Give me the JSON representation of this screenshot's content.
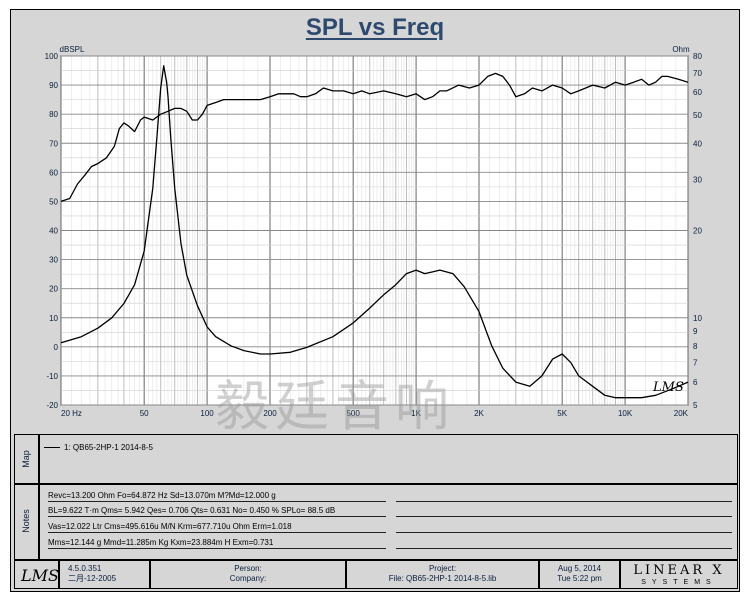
{
  "chart_data": {
    "type": "line",
    "title": "SPL vs Freq",
    "xscale": "log",
    "xlim": [
      20,
      20000
    ],
    "x_ticks": [
      20,
      50,
      100,
      200,
      500,
      1000,
      2000,
      5000,
      10000,
      20000
    ],
    "x_tick_labels": [
      "20  Hz",
      "50",
      "100",
      "200",
      "500",
      "1K",
      "2K",
      "5K",
      "10K",
      "20K"
    ],
    "left_axis": {
      "label": "dBSPL",
      "ylim": [
        -20,
        100
      ],
      "ticks": [
        100,
        90,
        80,
        70,
        60,
        50,
        40,
        30,
        20,
        10,
        0,
        -10,
        -20
      ]
    },
    "right_axis": {
      "label": "Ohm",
      "scale": "log",
      "ylim": [
        5,
        80
      ],
      "ticks": [
        80,
        70,
        60,
        50,
        40,
        30,
        20,
        10,
        9,
        8,
        7,
        6,
        5
      ]
    },
    "series": [
      {
        "name": "SPL",
        "axis": "left",
        "color": "#000000",
        "x": [
          20,
          22,
          24,
          26,
          28,
          30,
          33,
          36,
          38,
          40,
          42,
          45,
          48,
          50,
          55,
          60,
          65,
          70,
          75,
          80,
          85,
          90,
          95,
          100,
          110,
          120,
          140,
          160,
          180,
          200,
          220,
          240,
          260,
          280,
          300,
          330,
          360,
          400,
          450,
          500,
          550,
          600,
          700,
          800,
          900,
          1000,
          1100,
          1200,
          1300,
          1400,
          1600,
          1800,
          2000,
          2200,
          2400,
          2600,
          2800,
          3000,
          3300,
          3600,
          4000,
          4500,
          5000,
          5500,
          6000,
          7000,
          8000,
          9000,
          10000,
          11000,
          12000,
          13000,
          14000,
          15000,
          16000,
          18000,
          20000
        ],
        "y": [
          50,
          51,
          56,
          59,
          62,
          63,
          65,
          69,
          75,
          77,
          76,
          74,
          78,
          79,
          78,
          80,
          81,
          82,
          82,
          81,
          78,
          78,
          80,
          83,
          84,
          85,
          85,
          85,
          85,
          86,
          87,
          87,
          87,
          86,
          86,
          87,
          89,
          88,
          88,
          87,
          88,
          87,
          88,
          87,
          86,
          87,
          85,
          86,
          88,
          88,
          90,
          89,
          90,
          93,
          94,
          93,
          90,
          86,
          87,
          89,
          88,
          90,
          89,
          87,
          88,
          90,
          89,
          91,
          90,
          91,
          92,
          90,
          91,
          93,
          93,
          92,
          91
        ]
      },
      {
        "name": "Impedance",
        "axis": "right",
        "color": "#000000",
        "x": [
          20,
          25,
          30,
          35,
          40,
          45,
          50,
          55,
          58,
          60,
          62,
          64,
          65,
          67,
          70,
          75,
          80,
          90,
          100,
          110,
          130,
          150,
          180,
          200,
          250,
          300,
          400,
          500,
          600,
          700,
          800,
          900,
          1000,
          1100,
          1200,
          1300,
          1500,
          1700,
          2000,
          2300,
          2600,
          3000,
          3500,
          4000,
          4500,
          5000,
          5500,
          6000,
          7000,
          8000,
          9000,
          10000,
          12000,
          14000,
          16000,
          18000,
          20000
        ],
        "y": [
          8.2,
          8.6,
          9.2,
          10.0,
          11.2,
          13.0,
          17.0,
          28.0,
          45.0,
          62.0,
          74.0,
          65.0,
          58.0,
          42.0,
          28.0,
          18.0,
          14.0,
          11.0,
          9.3,
          8.6,
          8.0,
          7.7,
          7.5,
          7.5,
          7.6,
          7.9,
          8.6,
          9.6,
          10.8,
          12.0,
          13.0,
          14.2,
          14.6,
          14.2,
          14.4,
          14.6,
          14.2,
          12.8,
          10.5,
          8.0,
          6.7,
          6.0,
          5.8,
          6.3,
          7.2,
          7.5,
          7.0,
          6.3,
          5.8,
          5.4,
          5.3,
          5.3,
          5.3,
          5.4,
          5.6,
          5.8,
          6.0
        ]
      }
    ]
  },
  "watermark": "毅廷音响",
  "curve_mark": "LMS",
  "map": {
    "side_label": "Map",
    "legend": "1: QB65-2HP-1    2014-8-5"
  },
  "notes": {
    "side_label": "Notes",
    "lines": [
      "Revc=13.200 Ohm  Fo=64.872 Hz  Sd=13.070m M?Md=12.000 g",
      "BL=9.622 T·m  Qms= 5.942  Qes= 0.706  Qts= 0.631  No= 0.450 %  SPLo= 88.5 dB",
      "Vas=12.022 Ltr  Cms=495.616u M/N  Krm=677.710u Ohm  Erm=1.018",
      "Mms=12.144 g  Mmd=11.285m Kg  Kxm=23.884m H  Exm=0.731"
    ]
  },
  "footer": {
    "lms_logo": "LMS",
    "version": "4.5.0.351",
    "version_date": "二月-12-2005",
    "person_label": "Person:",
    "company_label": "Company:",
    "project_label": "Project:",
    "file_label": "File: QB65-2HP-1    2014-8-5.lib",
    "date": "Aug  5, 2014",
    "time": "Tue  5:22 pm",
    "brand": "LINEAR X",
    "brand_sub": "SYSTEMS"
  }
}
